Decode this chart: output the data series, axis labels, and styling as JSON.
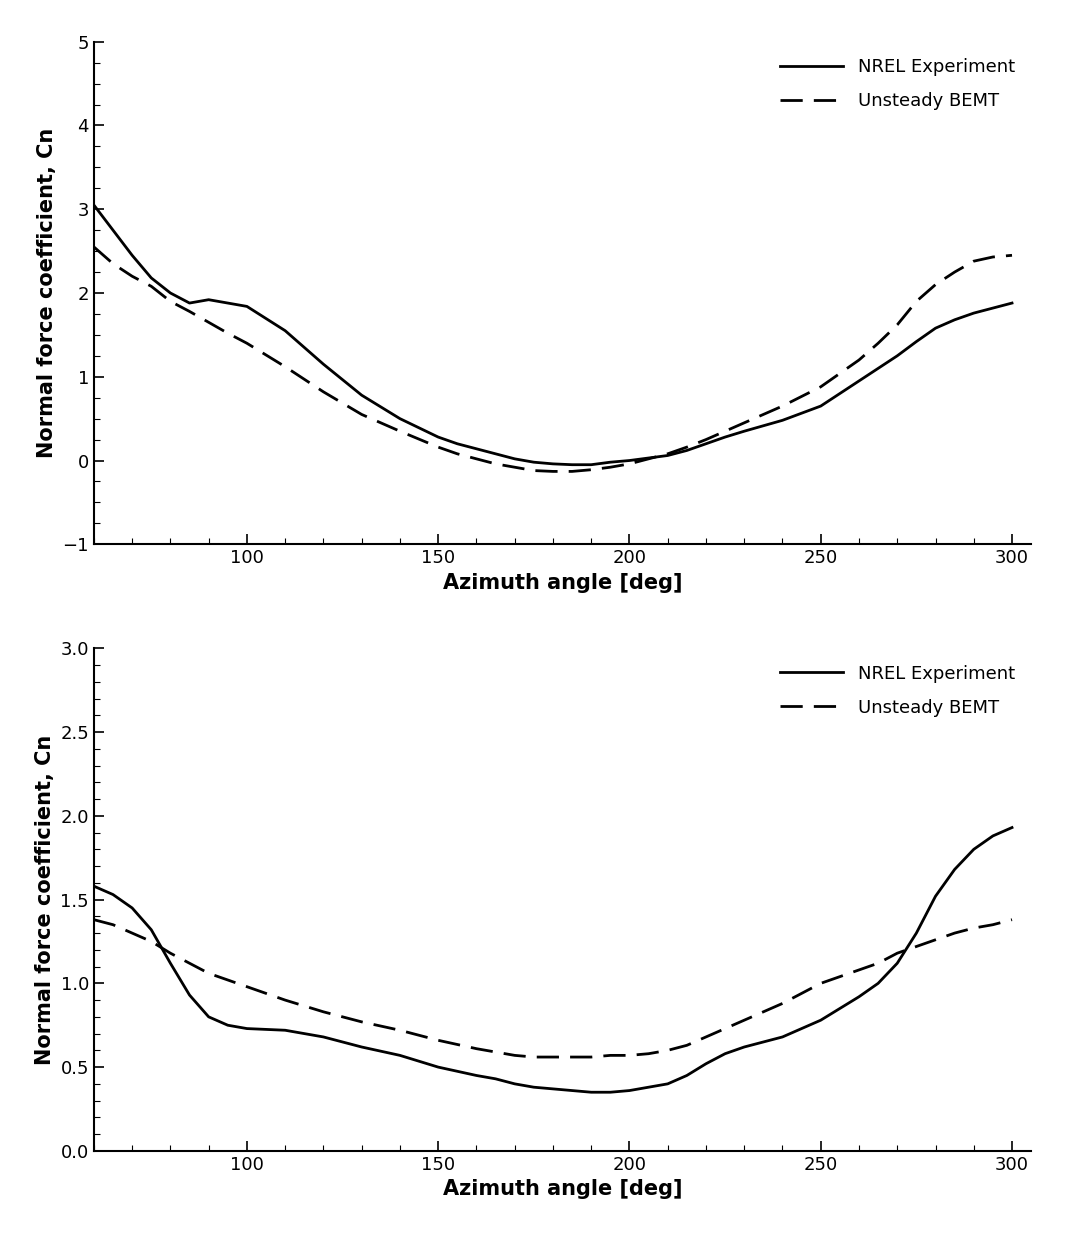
{
  "top": {
    "xlim": [
      60,
      305
    ],
    "ylim": [
      -1,
      5
    ],
    "xticks": [
      100,
      150,
      200,
      250,
      300
    ],
    "yticks": [
      -1,
      0,
      1,
      2,
      3,
      4,
      5
    ],
    "xlabel": "Azimuth angle [deg]",
    "ylabel": "Normal force coefficient, Cn",
    "exp_x": [
      60,
      65,
      70,
      75,
      80,
      85,
      90,
      95,
      100,
      110,
      120,
      130,
      140,
      150,
      155,
      160,
      165,
      170,
      175,
      180,
      185,
      190,
      195,
      200,
      205,
      210,
      215,
      220,
      225,
      230,
      240,
      250,
      260,
      265,
      270,
      275,
      280,
      285,
      290,
      295,
      300
    ],
    "exp_y": [
      3.05,
      2.75,
      2.45,
      2.18,
      2.0,
      1.88,
      1.92,
      1.88,
      1.84,
      1.55,
      1.15,
      0.78,
      0.5,
      0.28,
      0.2,
      0.14,
      0.08,
      0.02,
      -0.02,
      -0.04,
      -0.05,
      -0.05,
      -0.02,
      0.0,
      0.03,
      0.06,
      0.12,
      0.2,
      0.28,
      0.35,
      0.48,
      0.65,
      0.95,
      1.1,
      1.25,
      1.42,
      1.58,
      1.68,
      1.76,
      1.82,
      1.88
    ],
    "bemt_x": [
      60,
      65,
      70,
      75,
      80,
      85,
      90,
      95,
      100,
      110,
      120,
      130,
      140,
      150,
      155,
      160,
      165,
      170,
      175,
      180,
      185,
      190,
      195,
      200,
      205,
      210,
      215,
      220,
      225,
      230,
      240,
      250,
      260,
      265,
      270,
      275,
      280,
      285,
      290,
      295,
      300
    ],
    "bemt_y": [
      2.55,
      2.35,
      2.2,
      2.08,
      1.9,
      1.78,
      1.65,
      1.52,
      1.4,
      1.12,
      0.82,
      0.55,
      0.35,
      0.16,
      0.08,
      0.02,
      -0.04,
      -0.08,
      -0.12,
      -0.13,
      -0.13,
      -0.11,
      -0.08,
      -0.04,
      0.02,
      0.08,
      0.16,
      0.25,
      0.35,
      0.45,
      0.65,
      0.88,
      1.2,
      1.4,
      1.62,
      1.9,
      2.1,
      2.25,
      2.38,
      2.43,
      2.45
    ]
  },
  "bottom": {
    "xlim": [
      60,
      305
    ],
    "ylim": [
      0,
      3
    ],
    "xticks": [
      100,
      150,
      200,
      250,
      300
    ],
    "yticks": [
      0,
      0.5,
      1.0,
      1.5,
      2.0,
      2.5,
      3.0
    ],
    "xlabel": "Azimuth angle [deg]",
    "ylabel": "Normal force coefficient, Cn",
    "exp_x": [
      60,
      65,
      70,
      75,
      80,
      85,
      90,
      95,
      100,
      110,
      120,
      130,
      140,
      150,
      160,
      165,
      170,
      175,
      180,
      185,
      190,
      195,
      200,
      205,
      210,
      215,
      220,
      225,
      230,
      240,
      250,
      260,
      265,
      270,
      275,
      280,
      285,
      290,
      295,
      300
    ],
    "exp_y": [
      1.58,
      1.53,
      1.45,
      1.32,
      1.12,
      0.93,
      0.8,
      0.75,
      0.73,
      0.72,
      0.68,
      0.62,
      0.57,
      0.5,
      0.45,
      0.43,
      0.4,
      0.38,
      0.37,
      0.36,
      0.35,
      0.35,
      0.36,
      0.38,
      0.4,
      0.45,
      0.52,
      0.58,
      0.62,
      0.68,
      0.78,
      0.92,
      1.0,
      1.12,
      1.3,
      1.52,
      1.68,
      1.8,
      1.88,
      1.93
    ],
    "bemt_x": [
      60,
      65,
      70,
      75,
      80,
      85,
      90,
      95,
      100,
      110,
      120,
      130,
      140,
      150,
      160,
      165,
      170,
      175,
      180,
      185,
      190,
      195,
      200,
      205,
      210,
      215,
      220,
      225,
      230,
      240,
      250,
      260,
      265,
      270,
      275,
      280,
      285,
      290,
      295,
      300
    ],
    "bemt_y": [
      1.38,
      1.35,
      1.3,
      1.25,
      1.18,
      1.12,
      1.06,
      1.02,
      0.98,
      0.9,
      0.83,
      0.77,
      0.72,
      0.66,
      0.61,
      0.59,
      0.57,
      0.56,
      0.56,
      0.56,
      0.56,
      0.57,
      0.57,
      0.58,
      0.6,
      0.63,
      0.68,
      0.73,
      0.78,
      0.88,
      1.0,
      1.08,
      1.12,
      1.18,
      1.22,
      1.26,
      1.3,
      1.33,
      1.35,
      1.38
    ]
  },
  "line_color": "#000000",
  "linewidth": 2.0,
  "fontsize_label": 15,
  "fontsize_tick": 13,
  "fontsize_legend": 13,
  "legend_solid": "NREL Experiment",
  "legend_dashed": "Unsteady BEMT"
}
